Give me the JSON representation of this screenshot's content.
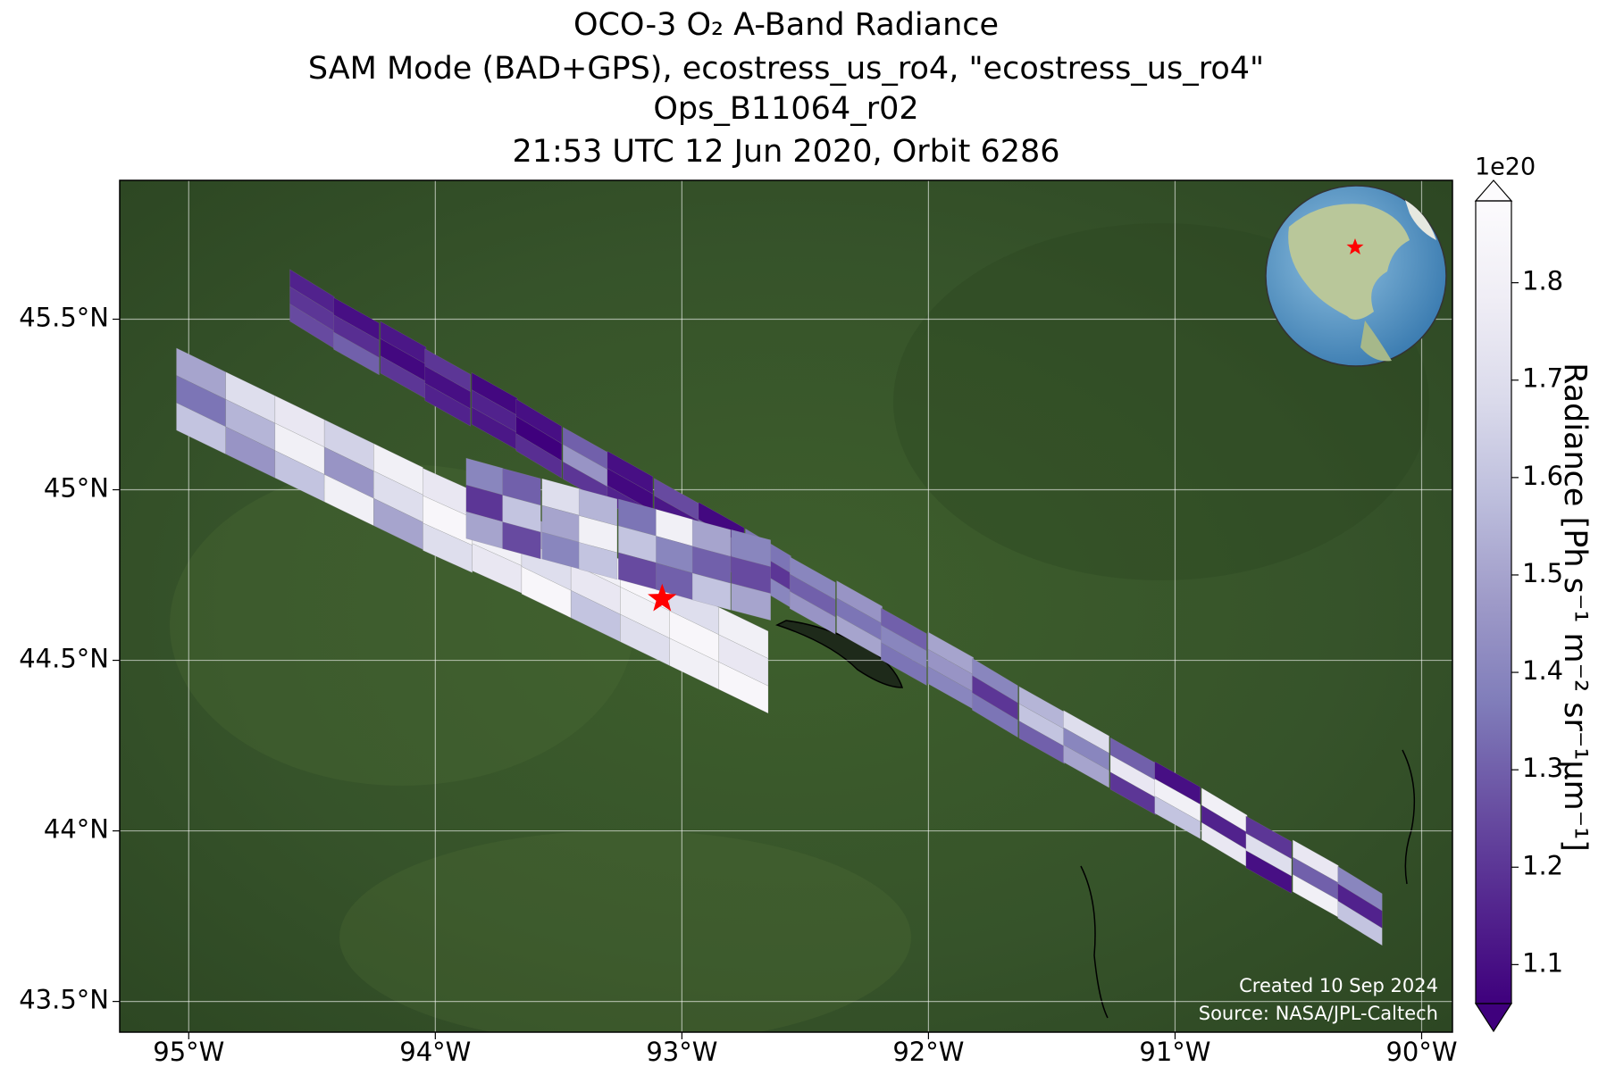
{
  "chart_data": {
    "type": "map",
    "title": [
      "OCO-3 O₂ A-Band Radiance",
      "SAM Mode (BAD+GPS), ecostress_us_ro4, \"ecostress_us_ro4\"",
      "Ops_B11064_r02",
      "21:53 UTC 12 Jun 2020, Orbit 6286"
    ],
    "xlim": [
      -95.28,
      -89.875
    ],
    "ylim": [
      43.41,
      45.907
    ],
    "xticks": [
      {
        "value": -95,
        "label": "95°W"
      },
      {
        "value": -94,
        "label": "94°W"
      },
      {
        "value": -93,
        "label": "93°W"
      },
      {
        "value": -92,
        "label": "92°W"
      },
      {
        "value": -91,
        "label": "91°W"
      },
      {
        "value": -90,
        "label": "90°W"
      }
    ],
    "yticks": [
      {
        "value": 43.5,
        "label": "43.5°N"
      },
      {
        "value": 44,
        "label": "44°N"
      },
      {
        "value": 44.5,
        "label": "44.5°N"
      },
      {
        "value": 45,
        "label": "45°N"
      },
      {
        "value": 45.5,
        "label": "45.5°N"
      }
    ],
    "grid": true,
    "colorbar": {
      "label": "Radiance [Ph s⁻¹ m⁻² sr⁻¹μm⁻¹]",
      "offset": "1e20",
      "clim": [
        1.06,
        1.884
      ],
      "ticks": [
        1.1,
        1.2,
        1.3,
        1.4,
        1.5,
        1.6,
        1.7,
        1.8
      ],
      "colors": [
        "#3f007d",
        "#54278f",
        "#6a51a3",
        "#807dba",
        "#9e9ac8",
        "#bcbddc",
        "#dadaeb",
        "#efedf5",
        "#fcfbfd"
      ]
    },
    "site": {
      "lon": -93.08,
      "lat": 44.68,
      "color": "#ff0000"
    },
    "swaths": [
      {
        "lon": [
          -94.5,
          -94.32,
          -94.13,
          -93.95,
          -93.76,
          -93.58,
          -93.39,
          -93.21,
          -93.02,
          -92.84,
          -92.65,
          -92.47,
          -92.28,
          -92.1,
          -91.91,
          -91.73,
          -91.54,
          -91.36,
          -91.17,
          -90.99,
          -90.8,
          -90.62,
          -90.43,
          -90.25
        ],
        "lat": [
          45.53,
          45.45,
          45.38,
          45.3,
          45.23,
          45.15,
          45.07,
          45.0,
          44.92,
          44.85,
          44.77,
          44.69,
          44.62,
          44.54,
          44.47,
          44.39,
          44.31,
          44.24,
          44.16,
          44.09,
          44.01,
          43.93,
          43.86,
          43.78
        ],
        "values": [
          [
            1.15,
            1.2,
            1.25
          ],
          [
            1.1,
            1.18,
            1.3
          ],
          [
            1.12,
            1.08,
            1.2
          ],
          [
            1.2,
            1.1,
            1.15
          ],
          [
            1.08,
            1.15,
            1.12
          ],
          [
            1.1,
            1.05,
            1.18
          ],
          [
            1.3,
            1.45,
            1.2
          ],
          [
            1.1,
            1.08,
            1.15
          ],
          [
            1.25,
            1.12,
            1.1
          ],
          [
            1.08,
            1.3,
            1.2
          ],
          [
            1.35,
            1.2,
            1.4
          ],
          [
            1.4,
            1.3,
            1.45
          ],
          [
            1.45,
            1.35,
            1.5
          ],
          [
            1.3,
            1.4,
            1.35
          ],
          [
            1.5,
            1.45,
            1.4
          ],
          [
            1.4,
            1.2,
            1.35
          ],
          [
            1.55,
            1.6,
            1.3
          ],
          [
            1.7,
            1.4,
            1.5
          ],
          [
            1.3,
            1.75,
            1.2
          ],
          [
            1.1,
            1.8,
            1.6
          ],
          [
            1.8,
            1.15,
            1.75
          ],
          [
            1.2,
            1.7,
            1.1
          ],
          [
            1.75,
            1.3,
            1.8
          ],
          [
            1.4,
            1.15,
            1.6
          ]
        ]
      },
      {
        "lon": [
          -94.95,
          -94.75,
          -94.55,
          -94.35,
          -94.15,
          -93.95,
          -93.75,
          -93.55,
          -93.35,
          -93.15,
          -92.95,
          -92.75
        ],
        "lat": [
          45.26,
          45.19,
          45.12,
          45.05,
          44.98,
          44.91,
          44.85,
          44.78,
          44.71,
          44.64,
          44.57,
          44.5
        ],
        "values": [
          [
            1.5,
            1.35,
            1.6
          ],
          [
            1.7,
            1.55,
            1.45
          ],
          [
            1.75,
            1.8,
            1.6
          ],
          [
            1.65,
            1.45,
            1.8
          ],
          [
            1.8,
            1.7,
            1.5
          ],
          [
            1.75,
            1.85,
            1.7
          ],
          [
            1.6,
            1.8,
            1.75
          ],
          [
            1.5,
            1.7,
            1.85
          ],
          [
            1.8,
            1.75,
            1.6
          ],
          [
            1.85,
            1.8,
            1.7
          ],
          [
            1.7,
            1.85,
            1.8
          ],
          [
            1.8,
            1.75,
            1.85
          ]
        ]
      },
      {
        "lon": [
          -93.8,
          -93.65,
          -93.49,
          -93.34,
          -93.18,
          -93.03,
          -92.88,
          -92.72
        ],
        "lat": [
          44.96,
          44.93,
          44.9,
          44.87,
          44.84,
          44.81,
          44.78,
          44.75
        ],
        "values": [
          [
            1.4,
            1.2,
            1.5
          ],
          [
            1.3,
            1.6,
            1.25
          ],
          [
            1.7,
            1.5,
            1.4
          ],
          [
            1.55,
            1.8,
            1.6
          ],
          [
            1.35,
            1.6,
            1.25
          ],
          [
            1.8,
            1.4,
            1.3
          ],
          [
            1.5,
            1.3,
            1.6
          ],
          [
            1.4,
            1.25,
            1.5
          ]
        ]
      }
    ],
    "annotations": [
      "Created 10 Sep 2024",
      "Source: NASA/JPL-Caltech"
    ]
  }
}
